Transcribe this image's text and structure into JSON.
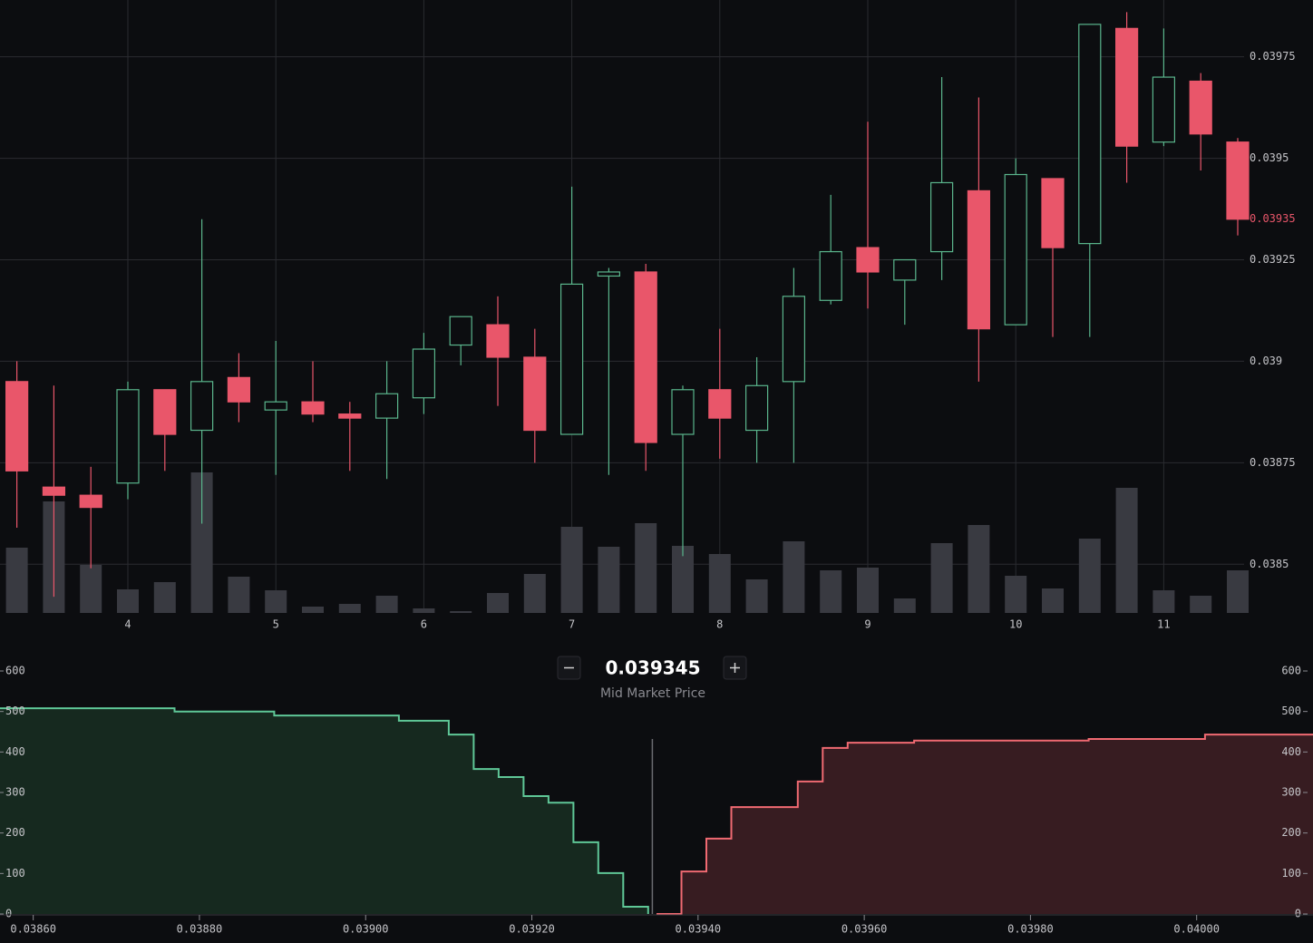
{
  "chart_data": [
    {
      "type": "candlestick",
      "categories": [
        null,
        null,
        null,
        "4",
        null,
        null,
        null,
        "5",
        null,
        null,
        null,
        "6",
        null,
        null,
        null,
        "7",
        null,
        null,
        null,
        "8",
        null,
        null,
        null,
        "9",
        null,
        null,
        null,
        "10",
        null,
        null,
        null,
        "11",
        null,
        null
      ],
      "open": [
        0.03895,
        0.03869,
        0.03867,
        0.0387,
        0.03893,
        0.03883,
        0.03896,
        0.03888,
        0.0389,
        0.03887,
        0.03886,
        0.03891,
        0.03904,
        0.03909,
        0.03901,
        0.03882,
        0.03921,
        0.03922,
        0.03882,
        0.03893,
        0.03883,
        0.03895,
        0.03915,
        0.03928,
        0.0392,
        0.03927,
        0.03942,
        0.03909,
        0.03945,
        0.03929,
        0.03982,
        0.03954,
        0.03969,
        0.03954
      ],
      "high": [
        0.039,
        0.03894,
        0.03874,
        0.03895,
        0.03893,
        0.03935,
        0.03902,
        0.03905,
        0.039,
        0.0389,
        0.039,
        0.03907,
        0.03911,
        0.03916,
        0.03908,
        0.03943,
        0.03923,
        0.03924,
        0.03894,
        0.03908,
        0.03901,
        0.03923,
        0.03941,
        0.03959,
        0.03925,
        0.0397,
        0.03965,
        0.0395,
        0.03945,
        0.03983,
        0.03986,
        0.03982,
        0.03971,
        0.03955
      ],
      "low": [
        0.03859,
        0.03842,
        0.03849,
        0.03866,
        0.03873,
        0.0386,
        0.03885,
        0.03872,
        0.03885,
        0.03873,
        0.03871,
        0.03887,
        0.03899,
        0.03889,
        0.03875,
        0.03882,
        0.03872,
        0.03873,
        0.03852,
        0.03876,
        0.03875,
        0.03875,
        0.03914,
        0.03913,
        0.03909,
        0.0392,
        0.03895,
        0.03909,
        0.03906,
        0.03906,
        0.03944,
        0.03953,
        0.03947,
        0.03931
      ],
      "close": [
        0.03873,
        0.03867,
        0.03864,
        0.03893,
        0.03882,
        0.03895,
        0.0389,
        0.0389,
        0.03887,
        0.03886,
        0.03892,
        0.03903,
        0.03911,
        0.03901,
        0.03883,
        0.03919,
        0.03922,
        0.0388,
        0.03893,
        0.03886,
        0.03894,
        0.03916,
        0.03927,
        0.03922,
        0.03925,
        0.03944,
        0.03908,
        0.03946,
        0.03928,
        0.03983,
        0.03953,
        0.0397,
        0.03956,
        0.03935
      ],
      "volume": [
        72,
        123,
        53,
        26,
        34,
        155,
        40,
        25,
        7,
        10,
        19,
        5,
        2,
        22,
        43,
        95,
        73,
        99,
        74,
        65,
        37,
        79,
        47,
        50,
        16,
        77,
        97,
        41,
        27,
        82,
        138,
        25,
        19,
        47
      ],
      "ylim": [
        0.03838,
        0.03989
      ],
      "yticks": [
        0.0385,
        0.03875,
        0.039,
        0.03925,
        0.0395,
        0.03975
      ],
      "up_color": "#5ab58c",
      "down_color": "#e9566a",
      "volume_color": "#393a41",
      "grid": true
    },
    {
      "type": "depth",
      "mid_price": 0.039345,
      "mid_price_label": "Mid Market Price",
      "bids": {
        "color": "#5fc797",
        "fill": "#16291f",
        "x": [
          0.03856,
          0.03877,
          0.03889,
          0.03904,
          0.0391,
          0.03913,
          0.03916,
          0.03919,
          0.03922,
          0.03925,
          0.03928,
          0.03931,
          0.03934
        ],
        "values": [
          508,
          500,
          490,
          477,
          443,
          358,
          338,
          291,
          275,
          177,
          101,
          18,
          0
        ]
      },
      "asks": {
        "color": "#f06a72",
        "fill": "#371c21",
        "x": [
          0.03935,
          0.03938,
          0.03941,
          0.03944,
          0.03952,
          0.03955,
          0.03958,
          0.03966,
          0.03987,
          0.04001
        ],
        "values": [
          0,
          105,
          186,
          264,
          327,
          410,
          423,
          428,
          432,
          443
        ]
      },
      "xlim": [
        0.03856,
        0.04014
      ],
      "xticks": [
        {
          "value": 0.0386,
          "label": "0.03860"
        },
        {
          "value": 0.0388,
          "label": "0.03880"
        },
        {
          "value": 0.039,
          "label": "0.03900"
        },
        {
          "value": 0.0392,
          "label": "0.03920"
        },
        {
          "value": 0.0394,
          "label": "0.03940"
        },
        {
          "value": 0.0396,
          "label": "0.03960"
        },
        {
          "value": 0.0398,
          "label": "0.03980"
        },
        {
          "value": 0.04,
          "label": "0.04000"
        }
      ],
      "ylim": [
        0,
        600
      ],
      "yticks": [
        0,
        100,
        200,
        300,
        400,
        500,
        600
      ]
    }
  ]
}
